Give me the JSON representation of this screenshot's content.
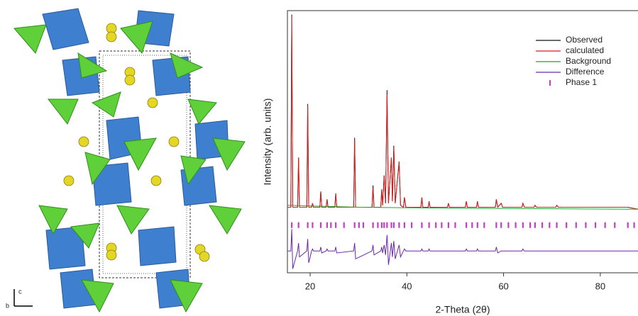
{
  "structure": {
    "axis_c": "c",
    "axis_b": "b"
  },
  "chart_data": {
    "type": "line",
    "xlabel": "2-Theta (2θ)",
    "ylabel": "Intensity (arb. units)",
    "xlim": [
      15.3,
      87.8
    ],
    "ylim": [
      -32,
      100
    ],
    "xticks": [
      20,
      40,
      60,
      80
    ],
    "legend": "upper right",
    "x": [
      15.3,
      16.0,
      16.2,
      16.4,
      17.4,
      17.6,
      17.8,
      19.3,
      19.5,
      19.7,
      20.3,
      20.5,
      20.7,
      22.0,
      22.2,
      22.4,
      23.3,
      23.5,
      23.7,
      25.1,
      25.3,
      25.5,
      29.0,
      29.2,
      29.4,
      32.8,
      33.0,
      33.2,
      34.6,
      34.8,
      35.0,
      35.3,
      35.6,
      35.9,
      36.2,
      36.8,
      37.0,
      37.3,
      37.6,
      38.4,
      38.7,
      39.3,
      39.5,
      39.8,
      42.9,
      43.1,
      43.3,
      44.4,
      44.6,
      44.8,
      48.4,
      48.6,
      48.8,
      52.1,
      52.3,
      52.5,
      54.4,
      54.6,
      54.8,
      58.3,
      58.5,
      58.8,
      59.5,
      59.8,
      63.8,
      64.0,
      64.3,
      66.3,
      66.5,
      66.8,
      70.8,
      71.0,
      71.3,
      85.5,
      85.7,
      87.8
    ],
    "series": [
      {
        "name": "Observed",
        "color": "#111111",
        "values": [
          1,
          1,
          98,
          1,
          1,
          26,
          1,
          1,
          53,
          1,
          1,
          3,
          1,
          1,
          9,
          1,
          1,
          5,
          1,
          1,
          8,
          1,
          1,
          36,
          1,
          1,
          12,
          1,
          1,
          10,
          2,
          17,
          3,
          60,
          3,
          26,
          4,
          32,
          3,
          24,
          2,
          1,
          6,
          1,
          1,
          6,
          1,
          1,
          4,
          1,
          1,
          3,
          1,
          1,
          4,
          1,
          1,
          4,
          1,
          1,
          5,
          1,
          3,
          1,
          1,
          3,
          1,
          1,
          2,
          1,
          1,
          2,
          1,
          1,
          1,
          0
        ]
      },
      {
        "name": "calculated",
        "color": "#d42020",
        "values": [
          1,
          1,
          97,
          1,
          1,
          26,
          1,
          1,
          52,
          1,
          1,
          3,
          1,
          1,
          9,
          1,
          1,
          5,
          1,
          1,
          8,
          1,
          1,
          35,
          1,
          1,
          11,
          1,
          1,
          10,
          2,
          17,
          3,
          58,
          3,
          26,
          4,
          31,
          3,
          24,
          2,
          1,
          6,
          1,
          1,
          6,
          1,
          1,
          4,
          1,
          1,
          3,
          1,
          1,
          4,
          1,
          1,
          4,
          1,
          1,
          5,
          1,
          3,
          1,
          1,
          3,
          1,
          1,
          2,
          1,
          1,
          2,
          1,
          1,
          1,
          0
        ]
      },
      {
        "name": "Background",
        "color": "#2aa02a",
        "x": [
          15.3,
          30,
          50,
          87.8
        ],
        "values": [
          2,
          1,
          0.5,
          0
        ]
      },
      {
        "name": "Difference",
        "color": "#6a2aa8",
        "values": [
          -21,
          -21,
          -10,
          -30,
          -21,
          -17,
          -24,
          -21,
          -15,
          -27,
          -21,
          -20,
          -21,
          -21,
          -19,
          -22,
          -21,
          -20,
          -21,
          -21,
          -19,
          -22,
          -21,
          -17,
          -25,
          -21,
          -18,
          -23,
          -21,
          -19,
          -22,
          -18,
          -23,
          -13,
          -28,
          -17,
          -24,
          -16,
          -25,
          -18,
          -24,
          -21,
          -20,
          -21,
          -21,
          -20,
          -21,
          -21,
          -20,
          -21,
          -21,
          -21,
          -21,
          -21,
          -20,
          -21,
          -21,
          -20,
          -21,
          -21,
          -19,
          -22,
          -21,
          -21,
          -21,
          -20,
          -21,
          -21,
          -21,
          -21,
          -21,
          -21,
          -21,
          -21,
          -21,
          -21
        ]
      },
      {
        "name": "Phase 1",
        "color": "#c040c0",
        "level": -8,
        "x": [
          16.2,
          17.6,
          19.5,
          20.5,
          22.2,
          23.5,
          24.3,
          25.3,
          27.0,
          29.2,
          30.1,
          31.0,
          33.0,
          34.0,
          34.8,
          35.3,
          35.9,
          36.8,
          37.3,
          38.4,
          39.5,
          41.0,
          43.1,
          44.6,
          46.0,
          47.2,
          48.6,
          50.0,
          52.3,
          53.5,
          54.6,
          56.0,
          58.5,
          59.5,
          61.0,
          62.5,
          64.0,
          65.5,
          66.5,
          68.0,
          69.5,
          71.0,
          73.0,
          75.0,
          77.0,
          79.0,
          81.0,
          83.0,
          85.7,
          87.0
        ]
      }
    ]
  }
}
